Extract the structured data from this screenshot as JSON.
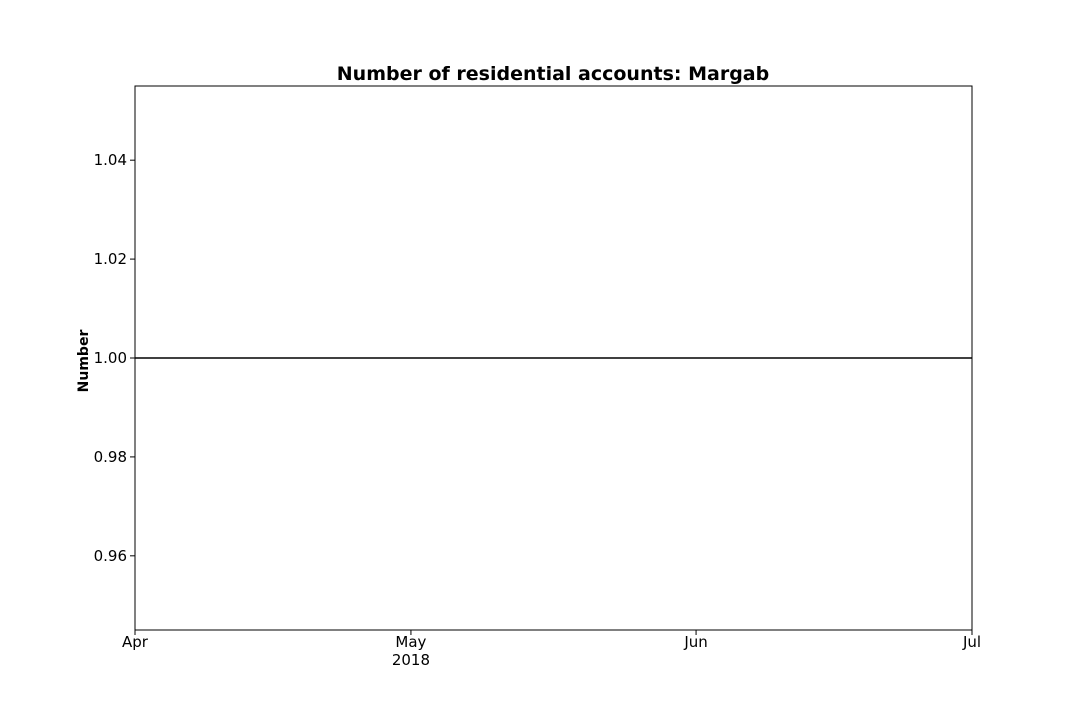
{
  "chart_data": {
    "type": "line",
    "title": "Number of residential accounts: Margab",
    "xlabel": "",
    "ylabel": "Number",
    "x_ticks": [
      {
        "date": "2018-04-01",
        "label": "Apr",
        "sublabel": ""
      },
      {
        "date": "2018-05-01",
        "label": "May",
        "sublabel": "2018"
      },
      {
        "date": "2018-06-01",
        "label": "Jun",
        "sublabel": ""
      },
      {
        "date": "2018-07-01",
        "label": "Jul",
        "sublabel": ""
      }
    ],
    "y_ticks": [
      0.96,
      0.98,
      1.0,
      1.02,
      1.04
    ],
    "xlim": [
      "2018-04-01",
      "2018-07-01"
    ],
    "ylim": [
      0.945,
      1.055
    ],
    "grid": false,
    "series": [
      {
        "color": "#000000",
        "points": [
          {
            "x": "2018-04-01",
            "y": 1.0
          },
          {
            "x": "2018-07-01",
            "y": 1.0
          }
        ]
      }
    ]
  }
}
